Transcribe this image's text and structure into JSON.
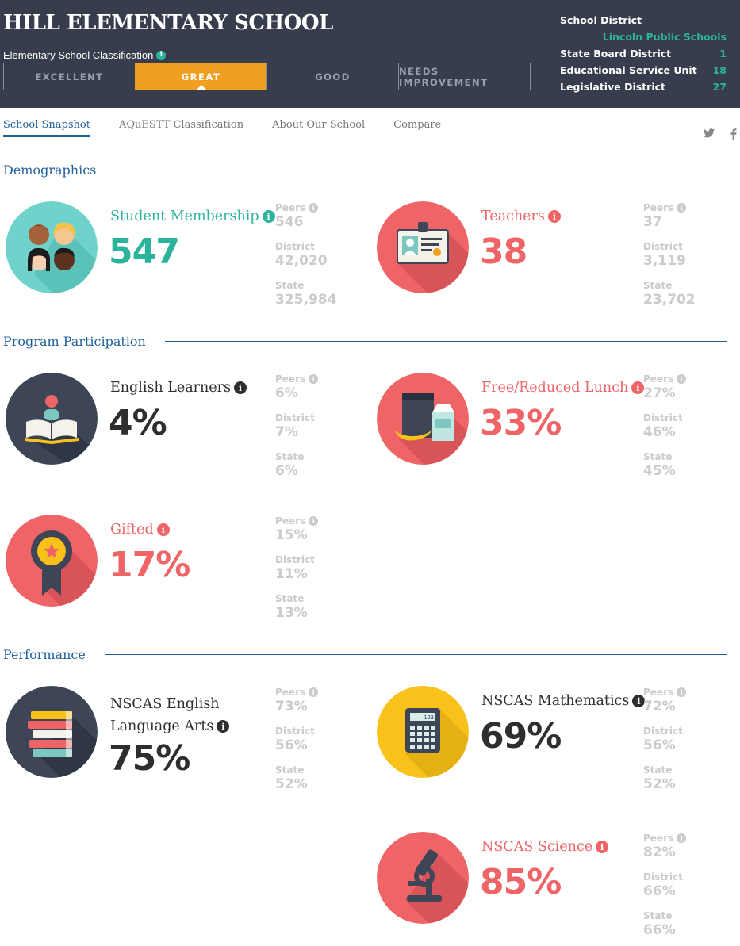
{
  "header": {
    "school_name": "HILL ELEMENTARY SCHOOL",
    "classification_label": "Elementary School Classification",
    "classification_tabs": [
      "EXCELLENT",
      "GREAT",
      "GOOD",
      "NEEDS IMPROVEMENT"
    ],
    "active_classification": "GREAT",
    "district": {
      "school_district_label": "School District",
      "school_district_value": "Lincoln Public Schools",
      "state_board_label": "State Board District",
      "state_board_value": "1",
      "esu_label": "Educational Service Unit",
      "esu_value": "18",
      "legislative_label": "Legislative District",
      "legislative_value": "27"
    }
  },
  "nav": {
    "tabs": [
      "School Snapshot",
      "AQuESTT Classification",
      "About Our School",
      "Compare"
    ],
    "active": "School Snapshot",
    "social": [
      "twitter-icon",
      "facebook-icon"
    ]
  },
  "sections": {
    "demographics": "Demographics",
    "program": "Program Participation",
    "performance": "Performance"
  },
  "comp_labels": {
    "peers": "Peers",
    "district": "District",
    "state": "State"
  },
  "stats": {
    "membership": {
      "label": "Student Membership",
      "value": "547",
      "peers": "546",
      "district": "42,020",
      "state": "325,984"
    },
    "teachers": {
      "label": "Teachers",
      "value": "38",
      "peers": "37",
      "district": "3,119",
      "state": "23,702"
    },
    "english_learners": {
      "label": "English Learners",
      "value": "4%",
      "peers": "6%",
      "district": "7%",
      "state": "6%"
    },
    "lunch": {
      "label": "Free/Reduced Lunch",
      "value": "33%",
      "peers": "27%",
      "district": "46%",
      "state": "45%"
    },
    "gifted": {
      "label": "Gifted",
      "value": "17%",
      "peers": "15%",
      "district": "11%",
      "state": "13%"
    },
    "ela": {
      "label_line1": "NSCAS English",
      "label_line2": "Language Arts",
      "value": "75%",
      "peers": "73%",
      "district": "56%",
      "state": "52%"
    },
    "math": {
      "label": "NSCAS Mathematics",
      "value": "69%",
      "peers": "72%",
      "district": "56%",
      "state": "52%"
    },
    "science": {
      "label": "NSCAS Science",
      "value": "85%",
      "peers": "82%",
      "district": "66%",
      "state": "66%"
    }
  },
  "calculator_display": "123",
  "colors": {
    "teal": "#2bb39b",
    "red": "#ef6467",
    "dark": "#2e2e2e",
    "yellow": "#f8c21a",
    "navy": "#3d4556",
    "orange": "#f0a020"
  }
}
